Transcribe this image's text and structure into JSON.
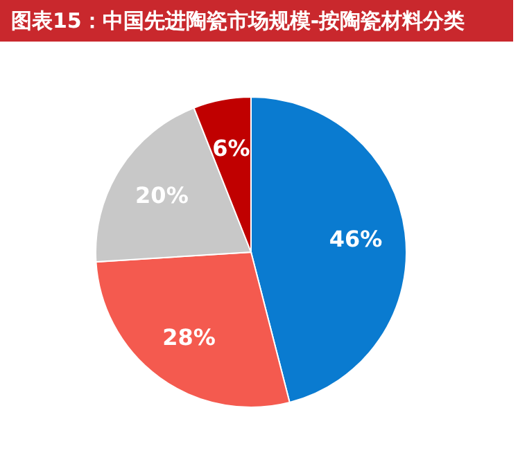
{
  "chart_data": {
    "type": "pie",
    "title": "图表15：中国先进陶瓷市场规模-按陶瓷材料分类",
    "categories": [
      null,
      null,
      null,
      null
    ],
    "values": [
      46,
      28,
      20,
      6
    ],
    "colors": [
      "#0a7bd0",
      "#f45a4f",
      "#c8c8c8",
      "#c00000"
    ],
    "value_labels": [
      "46%",
      "28%",
      "20%",
      "6%"
    ]
  }
}
